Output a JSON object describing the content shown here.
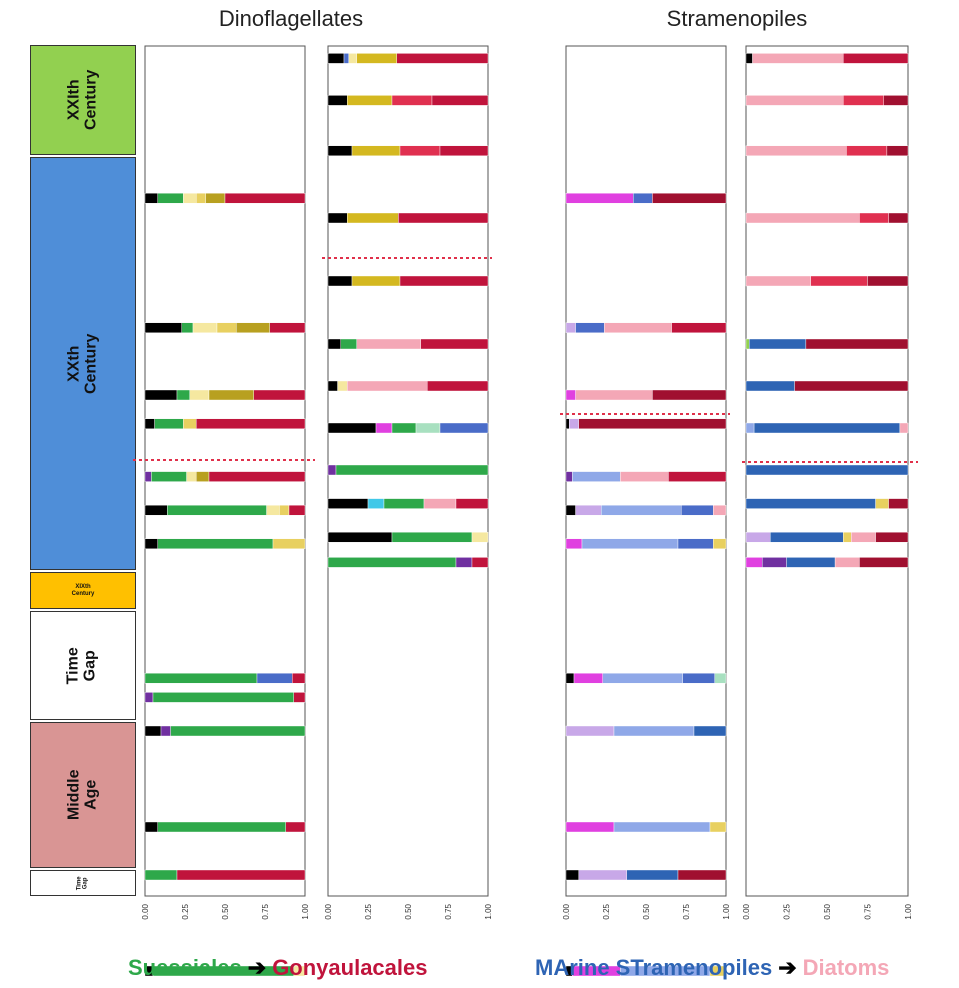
{
  "titles": {
    "left": "Dinoflagellates",
    "right": "Stramenopiles"
  },
  "periods": [
    {
      "id": "xxi",
      "label": "XXIth\nCentury",
      "color": "#92d050"
    },
    {
      "id": "xx",
      "label": "XXth\nCentury",
      "color": "#4f8ed8"
    },
    {
      "id": "xix",
      "label": "XIXth\nCentury",
      "color": "#ffc000"
    },
    {
      "id": "gap1",
      "label": "Time\nGap",
      "color": "#ffffff"
    },
    {
      "id": "middle",
      "label": "Middle\nAge",
      "color": "#d99594"
    },
    {
      "id": "gap2",
      "label": "Time\nGap",
      "color": "#ffffff"
    }
  ],
  "legend": {
    "left_from": "Suessiales",
    "left_to": "Gonyaulacales",
    "right_from": "MArine STramenopiles",
    "right_to": "Diatoms",
    "arrow": "➔",
    "colors": {
      "suessiales": "#2ea84a",
      "gonyaulacales": "#c0143c",
      "mast": "#2e64b4",
      "diatoms": "#f4a7b6"
    }
  },
  "chart_data": [
    {
      "type": "bar",
      "orientation": "horizontal-stacked",
      "panel": "dinoflagellates-1",
      "title": "Dinoflagellates",
      "xlim": [
        0,
        1
      ],
      "xticks": [
        "0.00",
        "0.25",
        "0.50",
        "0.75",
        "1.00"
      ],
      "rows": [
        {
          "depth": 0.14,
          "segments": [
            [
              "#000000",
              0.08
            ],
            [
              "#2ea84a",
              0.16
            ],
            [
              "#f5e8a0",
              0.08
            ],
            [
              "#e8d060",
              0.06
            ],
            [
              "#b8a020",
              0.12
            ],
            [
              "#c0143c",
              0.5
            ]
          ]
        },
        {
          "depth": 0.41,
          "segments": [
            [
              "#000000",
              0.23
            ],
            [
              "#2ea84a",
              0.07
            ],
            [
              "#f5e8a0",
              0.15
            ],
            [
              "#e8d060",
              0.12
            ],
            [
              "#b8a020",
              0.21
            ],
            [
              "#c0143c",
              0.22
            ]
          ]
        },
        {
          "depth": 0.55,
          "segments": [
            [
              "#000000",
              0.2
            ],
            [
              "#2ea84a",
              0.08
            ],
            [
              "#f5e8a0",
              0.12
            ],
            [
              "#b8a020",
              0.28
            ],
            [
              "#c0143c",
              0.32
            ]
          ]
        },
        {
          "depth": 0.61,
          "segments": [
            [
              "#000000",
              0.06
            ],
            [
              "#2ea84a",
              0.18
            ],
            [
              "#e8d060",
              0.08
            ],
            [
              "#c0143c",
              0.68
            ]
          ]
        },
        {
          "depth": 0.72,
          "segments": [
            [
              "#7030a0",
              0.04
            ],
            [
              "#2ea84a",
              0.22
            ],
            [
              "#f5e8a0",
              0.06
            ],
            [
              "#b8a020",
              0.08
            ],
            [
              "#c0143c",
              0.6
            ]
          ]
        },
        {
          "depth": 0.79,
          "segments": [
            [
              "#000000",
              0.14
            ],
            [
              "#2ea84a",
              0.62
            ],
            [
              "#f5e8a0",
              0.08
            ],
            [
              "#e8d060",
              0.06
            ],
            [
              "#c0143c",
              0.1
            ]
          ]
        },
        {
          "depth": 0.86,
          "segments": [
            [
              "#000000",
              0.08
            ],
            [
              "#2ea84a",
              0.72
            ],
            [
              "#e8d060",
              0.2
            ]
          ]
        },
        {
          "depth": 1.14,
          "segments": [
            [
              "#2ea84a",
              0.7
            ],
            [
              "#4a6cc8",
              0.22
            ],
            [
              "#c0143c",
              0.08
            ]
          ]
        },
        {
          "depth": 1.18,
          "segments": [
            [
              "#7030a0",
              0.05
            ],
            [
              "#2ea84a",
              0.88
            ],
            [
              "#c0143c",
              0.07
            ]
          ]
        },
        {
          "depth": 1.25,
          "segments": [
            [
              "#000000",
              0.1
            ],
            [
              "#7030a0",
              0.06
            ],
            [
              "#2ea84a",
              0.84
            ]
          ]
        },
        {
          "depth": 1.45,
          "segments": [
            [
              "#000000",
              0.08
            ],
            [
              "#2ea84a",
              0.8
            ],
            [
              "#c0143c",
              0.12
            ]
          ]
        },
        {
          "depth": 1.55,
          "segments": [
            [
              "#2ea84a",
              0.2
            ],
            [
              "#c0143c",
              0.8
            ]
          ]
        },
        {
          "depth": 1.75,
          "segments": [
            [
              "#000000",
              0.05
            ],
            [
              "#2ea84a",
              0.88
            ],
            [
              "#f5e8a0",
              0.07
            ]
          ]
        }
      ]
    },
    {
      "type": "bar",
      "orientation": "horizontal-stacked",
      "panel": "dinoflagellates-2",
      "xlim": [
        0,
        1
      ],
      "xticks": [
        "0.00",
        "0.25",
        "0.50",
        "0.75",
        "1.00"
      ],
      "rows": [
        {
          "depth": 0.02,
          "segments": [
            [
              "#000000",
              0.1
            ],
            [
              "#4a6cc8",
              0.03
            ],
            [
              "#f5e8a0",
              0.05
            ],
            [
              "#d4b820",
              0.25
            ],
            [
              "#c0143c",
              0.57
            ]
          ]
        },
        {
          "depth": 0.12,
          "segments": [
            [
              "#000000",
              0.12
            ],
            [
              "#d4b820",
              0.28
            ],
            [
              "#e03050",
              0.25
            ],
            [
              "#c0143c",
              0.35
            ]
          ]
        },
        {
          "depth": 0.24,
          "segments": [
            [
              "#000000",
              0.15
            ],
            [
              "#d4b820",
              0.3
            ],
            [
              "#e03050",
              0.25
            ],
            [
              "#c0143c",
              0.3
            ]
          ]
        },
        {
          "depth": 0.4,
          "segments": [
            [
              "#000000",
              0.12
            ],
            [
              "#d4b820",
              0.32
            ],
            [
              "#c0143c",
              0.56
            ]
          ]
        },
        {
          "depth": 0.55,
          "segments": [
            [
              "#000000",
              0.15
            ],
            [
              "#d4b820",
              0.3
            ],
            [
              "#c0143c",
              0.55
            ]
          ]
        },
        {
          "depth": 0.7,
          "segments": [
            [
              "#000000",
              0.08
            ],
            [
              "#2ea84a",
              0.1
            ],
            [
              "#f4a7b6",
              0.4
            ],
            [
              "#c0143c",
              0.42
            ]
          ]
        },
        {
          "depth": 0.8,
          "segments": [
            [
              "#000000",
              0.06
            ],
            [
              "#f5e8a0",
              0.06
            ],
            [
              "#f4a7b6",
              0.5
            ],
            [
              "#c0143c",
              0.38
            ]
          ]
        },
        {
          "depth": 0.9,
          "segments": [
            [
              "#000000",
              0.3
            ],
            [
              "#e040e0",
              0.1
            ],
            [
              "#2ea84a",
              0.15
            ],
            [
              "#a8e0c0",
              0.15
            ],
            [
              "#4a6cc8",
              0.3
            ]
          ]
        },
        {
          "depth": 1.0,
          "segments": [
            [
              "#7030a0",
              0.05
            ],
            [
              "#2ea84a",
              0.95
            ]
          ]
        },
        {
          "depth": 1.08,
          "segments": [
            [
              "#000000",
              0.25
            ],
            [
              "#40c8e8",
              0.1
            ],
            [
              "#2ea84a",
              0.25
            ],
            [
              "#f4a7b6",
              0.2
            ],
            [
              "#c0143c",
              0.2
            ]
          ]
        },
        {
          "depth": 1.16,
          "segments": [
            [
              "#000000",
              0.4
            ],
            [
              "#2ea84a",
              0.5
            ],
            [
              "#f5e8a0",
              0.1
            ]
          ]
        },
        {
          "depth": 1.22,
          "segments": [
            [
              "#2ea84a",
              0.8
            ],
            [
              "#7030a0",
              0.1
            ],
            [
              "#c0143c",
              0.1
            ]
          ]
        }
      ]
    },
    {
      "type": "bar",
      "orientation": "horizontal-stacked",
      "panel": "stramenopiles-1",
      "title": "Stramenopiles",
      "xlim": [
        0,
        1
      ],
      "xticks": [
        "0.00",
        "0.25",
        "0.50",
        "0.75",
        "1.00"
      ],
      "rows": [
        {
          "depth": 0.14,
          "segments": [
            [
              "#e040e0",
              0.42
            ],
            [
              "#4a6cc8",
              0.12
            ],
            [
              "#a01030",
              0.46
            ]
          ]
        },
        {
          "depth": 0.41,
          "segments": [
            [
              "#c8a8e8",
              0.06
            ],
            [
              "#4a6cc8",
              0.18
            ],
            [
              "#f4a7b6",
              0.42
            ],
            [
              "#c0143c",
              0.34
            ]
          ]
        },
        {
          "depth": 0.55,
          "segments": [
            [
              "#e040e0",
              0.06
            ],
            [
              "#f4a7b6",
              0.48
            ],
            [
              "#a01030",
              0.46
            ]
          ]
        },
        {
          "depth": 0.61,
          "segments": [
            [
              "#000000",
              0.02
            ],
            [
              "#c8a8e8",
              0.06
            ],
            [
              "#a01030",
              0.92
            ]
          ]
        },
        {
          "depth": 0.72,
          "segments": [
            [
              "#7030a0",
              0.04
            ],
            [
              "#8fa8e8",
              0.3
            ],
            [
              "#f4a7b6",
              0.3
            ],
            [
              "#c0143c",
              0.36
            ]
          ]
        },
        {
          "depth": 0.79,
          "segments": [
            [
              "#000000",
              0.06
            ],
            [
              "#c8a8e8",
              0.16
            ],
            [
              "#8fa8e8",
              0.5
            ],
            [
              "#4a6cc8",
              0.2
            ],
            [
              "#f4a7b6",
              0.08
            ]
          ]
        },
        {
          "depth": 0.86,
          "segments": [
            [
              "#e040e0",
              0.1
            ],
            [
              "#8fa8e8",
              0.6
            ],
            [
              "#4a6cc8",
              0.22
            ],
            [
              "#e8d060",
              0.08
            ]
          ]
        },
        {
          "depth": 1.14,
          "segments": [
            [
              "#000000",
              0.05
            ],
            [
              "#e040e0",
              0.18
            ],
            [
              "#8fa8e8",
              0.5
            ],
            [
              "#4a6cc8",
              0.2
            ],
            [
              "#a8e0c0",
              0.07
            ]
          ]
        },
        {
          "depth": 1.25,
          "segments": [
            [
              "#c8a8e8",
              0.3
            ],
            [
              "#8fa8e8",
              0.5
            ],
            [
              "#2e64b4",
              0.2
            ]
          ]
        },
        {
          "depth": 1.45,
          "segments": [
            [
              "#e040e0",
              0.3
            ],
            [
              "#8fa8e8",
              0.6
            ],
            [
              "#e8d060",
              0.1
            ]
          ]
        },
        {
          "depth": 1.55,
          "segments": [
            [
              "#000000",
              0.08
            ],
            [
              "#c8a8e8",
              0.3
            ],
            [
              "#2e64b4",
              0.32
            ],
            [
              "#a01030",
              0.3
            ]
          ]
        },
        {
          "depth": 1.75,
          "segments": [
            [
              "#000000",
              0.04
            ],
            [
              "#e040e0",
              0.3
            ],
            [
              "#8fa8e8",
              0.56
            ],
            [
              "#e8d060",
              0.1
            ]
          ]
        }
      ]
    },
    {
      "type": "bar",
      "orientation": "horizontal-stacked",
      "panel": "stramenopiles-2",
      "xlim": [
        0,
        1
      ],
      "xticks": [
        "0.00",
        "0.25",
        "0.50",
        "0.75",
        "1.00"
      ],
      "rows": [
        {
          "depth": 0.02,
          "segments": [
            [
              "#000000",
              0.04
            ],
            [
              "#f4a7b6",
              0.56
            ],
            [
              "#c0143c",
              0.4
            ]
          ]
        },
        {
          "depth": 0.12,
          "segments": [
            [
              "#f4a7b6",
              0.6
            ],
            [
              "#e03050",
              0.25
            ],
            [
              "#a01030",
              0.15
            ]
          ]
        },
        {
          "depth": 0.24,
          "segments": [
            [
              "#f4a7b6",
              0.62
            ],
            [
              "#e03050",
              0.25
            ],
            [
              "#a01030",
              0.13
            ]
          ]
        },
        {
          "depth": 0.4,
          "segments": [
            [
              "#f4a7b6",
              0.7
            ],
            [
              "#e03050",
              0.18
            ],
            [
              "#a01030",
              0.12
            ]
          ]
        },
        {
          "depth": 0.55,
          "segments": [
            [
              "#f4a7b6",
              0.4
            ],
            [
              "#e03050",
              0.35
            ],
            [
              "#a01030",
              0.25
            ]
          ]
        },
        {
          "depth": 0.7,
          "segments": [
            [
              "#92d050",
              0.02
            ],
            [
              "#2e64b4",
              0.35
            ],
            [
              "#a01030",
              0.63
            ]
          ]
        },
        {
          "depth": 0.8,
          "segments": [
            [
              "#2e64b4",
              0.3
            ],
            [
              "#a01030",
              0.7
            ]
          ]
        },
        {
          "depth": 0.9,
          "segments": [
            [
              "#8fa8e8",
              0.05
            ],
            [
              "#2e64b4",
              0.9
            ],
            [
              "#f4a7b6",
              0.05
            ]
          ]
        },
        {
          "depth": 1.0,
          "segments": [
            [
              "#2e64b4",
              1.0
            ]
          ]
        },
        {
          "depth": 1.08,
          "segments": [
            [
              "#2e64b4",
              0.8
            ],
            [
              "#e8d060",
              0.08
            ],
            [
              "#a01030",
              0.12
            ]
          ]
        },
        {
          "depth": 1.16,
          "segments": [
            [
              "#c8a8e8",
              0.15
            ],
            [
              "#2e64b4",
              0.45
            ],
            [
              "#e8d060",
              0.05
            ],
            [
              "#f4a7b6",
              0.15
            ],
            [
              "#a01030",
              0.2
            ]
          ]
        },
        {
          "depth": 1.22,
          "segments": [
            [
              "#e040e0",
              0.1
            ],
            [
              "#7030a0",
              0.15
            ],
            [
              "#2e64b4",
              0.3
            ],
            [
              "#f4a7b6",
              0.15
            ],
            [
              "#a01030",
              0.3
            ]
          ]
        }
      ]
    }
  ]
}
